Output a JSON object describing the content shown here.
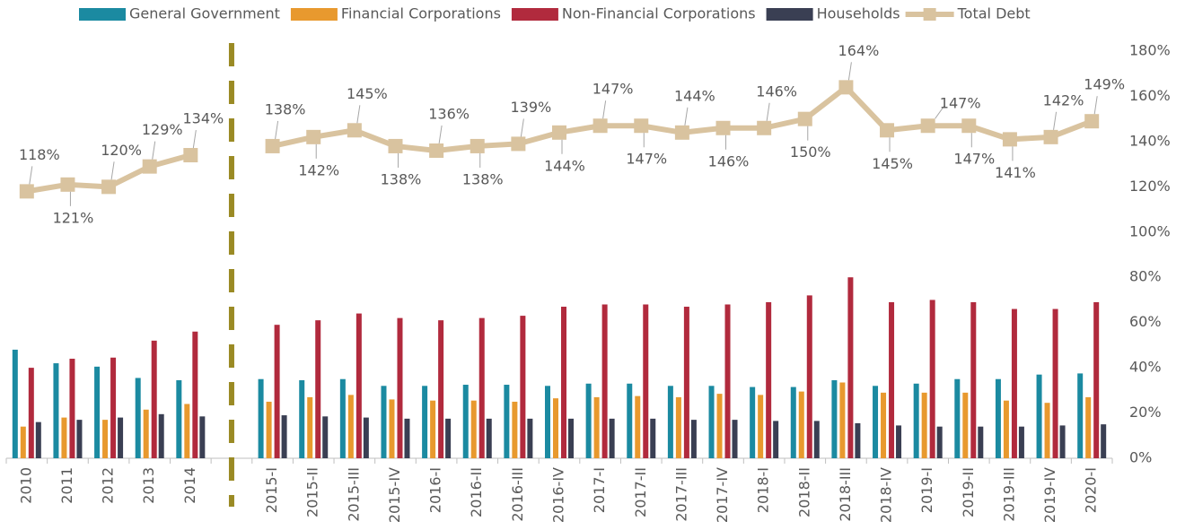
{
  "chart_data": {
    "type": "bar",
    "categories": [
      "2010",
      "2011",
      "2012",
      "2013",
      "2014",
      null,
      "2015-I",
      "2015-II",
      "2015-III",
      "2015-IV",
      "2016-I",
      "2016-II",
      "2016-III",
      "2016-IV",
      "2017-I",
      "2017-II",
      "2017-III",
      "2017-IV",
      "2018-I",
      "2018-II",
      "2018-III",
      "2018-IV",
      "2019-I",
      "2019-II",
      "2019-III",
      "2019-IV",
      "2020-I"
    ],
    "series": [
      {
        "name": "General Government",
        "type": "bar",
        "color": "#1b8aa1",
        "values": [
          48,
          42,
          40.5,
          35.5,
          34.5,
          null,
          35,
          34.5,
          35,
          32,
          32,
          32.5,
          32.5,
          32,
          33,
          33,
          32,
          32,
          31.5,
          31.5,
          34.5,
          32,
          33,
          35,
          35,
          37,
          37.5
        ]
      },
      {
        "name": "Financial Corporations",
        "type": "bar",
        "color": "#e8992e",
        "values": [
          14,
          18,
          17,
          21.5,
          24,
          null,
          25,
          27,
          28,
          26,
          25.5,
          25.5,
          25,
          26.5,
          27,
          27.5,
          27,
          28.5,
          28,
          29.5,
          33.5,
          29,
          29,
          29,
          25.5,
          24.5,
          27
        ]
      },
      {
        "name": "Non-Financial Corporations",
        "type": "bar",
        "color": "#b12a3d",
        "values": [
          40,
          44,
          44.5,
          52,
          56,
          null,
          59,
          61,
          64,
          62,
          61,
          62,
          63,
          67,
          68,
          68,
          67,
          68,
          69,
          72,
          80,
          69,
          70,
          69,
          66,
          66,
          69
        ]
      },
      {
        "name": "Households",
        "type": "bar",
        "color": "#3a3f53",
        "values": [
          16,
          17,
          18,
          19.5,
          18.5,
          null,
          19,
          18.5,
          18,
          17.5,
          17.5,
          17.5,
          17.5,
          17.5,
          17.5,
          17.5,
          17,
          17,
          16.5,
          16.5,
          15.5,
          14.5,
          14,
          14,
          14,
          14.5,
          15
        ]
      },
      {
        "name": "Total Debt",
        "type": "line",
        "color": "#d9c39f",
        "values": [
          118,
          121,
          120,
          129,
          134,
          null,
          138,
          142,
          145,
          138,
          136,
          138,
          139,
          144,
          147,
          147,
          144,
          146,
          146,
          150,
          164,
          145,
          147,
          147,
          141,
          142,
          149
        ],
        "value_labels": [
          "118%",
          "121%",
          "120%",
          "129%",
          "134%",
          null,
          "138%",
          "142%",
          "145%",
          "138%",
          "136%",
          "138%",
          "139%",
          "144%",
          "147%",
          "147%",
          "144%",
          "146%",
          "146%",
          "150%",
          "164%",
          "145%",
          "147%",
          "147%",
          "141%",
          "142%",
          "149%"
        ]
      }
    ],
    "ylim": [
      0,
      180
    ],
    "yticks": [
      {
        "value": 0,
        "label": "0%"
      },
      {
        "value": 20,
        "label": "20%"
      },
      {
        "value": 40,
        "label": "40%"
      },
      {
        "value": 60,
        "label": "60%"
      },
      {
        "value": 80,
        "label": "80%"
      },
      {
        "value": 100,
        "label": "100%"
      },
      {
        "value": 120,
        "label": "120%"
      },
      {
        "value": 140,
        "label": "140%"
      },
      {
        "value": 160,
        "label": "160%"
      },
      {
        "value": 180,
        "label": "180%"
      }
    ],
    "grid": false,
    "legend": "top"
  }
}
